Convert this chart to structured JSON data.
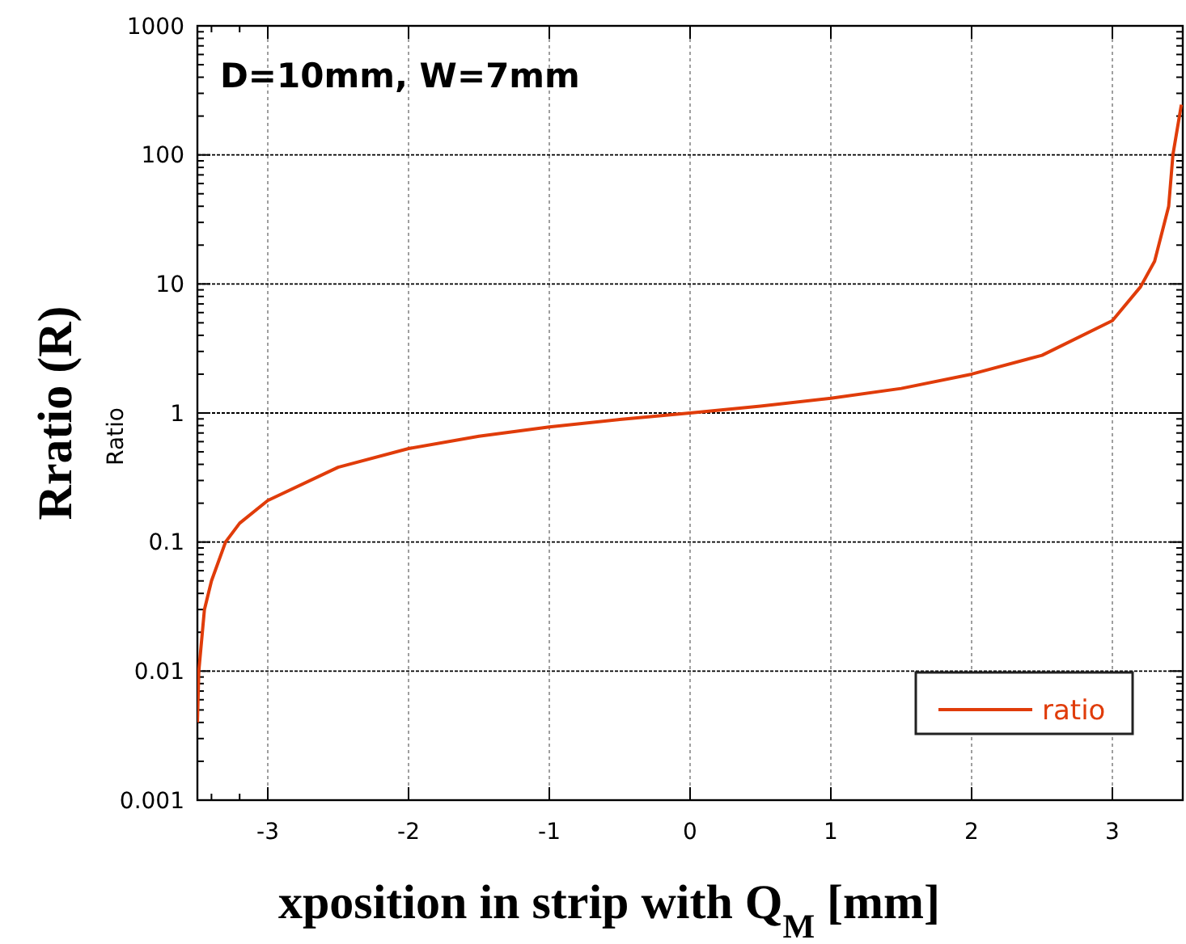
{
  "chart_data": {
    "type": "line",
    "xlabel": "xposition in strip with Q$_{M}$ [mm]",
    "ylabel": "Rratio (R)",
    "annotations": [
      "D=10mm, W=7mm",
      "Ratio"
    ],
    "x": [
      -3.5,
      -3.49,
      -3.45,
      -3.4,
      -3.3,
      -3.2,
      -3,
      -2.5,
      -2,
      -1.5,
      -1,
      -0.5,
      0,
      0.5,
      1,
      1.5,
      2,
      2.5,
      3,
      3.2,
      3.3,
      3.4,
      3.43,
      3.49
    ],
    "series": [
      {
        "name": "ratio",
        "color": "#e03c0a",
        "values": [
          0.004,
          0.01,
          0.03,
          0.05,
          0.1,
          0.14,
          0.21,
          0.38,
          0.53,
          0.66,
          0.78,
          0.89,
          1,
          1.13,
          1.3,
          1.55,
          2.0,
          2.8,
          5.2,
          9.5,
          15,
          40,
          100,
          245
        ]
      }
    ],
    "xlim": [
      -3.5,
      3.5
    ],
    "xticks": [
      -3,
      -2,
      -1,
      0,
      1,
      2,
      3
    ],
    "ylim": [
      0.001,
      1000
    ],
    "yticks": [
      0.001,
      0.01,
      0.1,
      1,
      10,
      100,
      1000
    ],
    "log": "y",
    "grid": true,
    "legend": "bottom right",
    "line_style": "solid",
    "marker": "none"
  }
}
